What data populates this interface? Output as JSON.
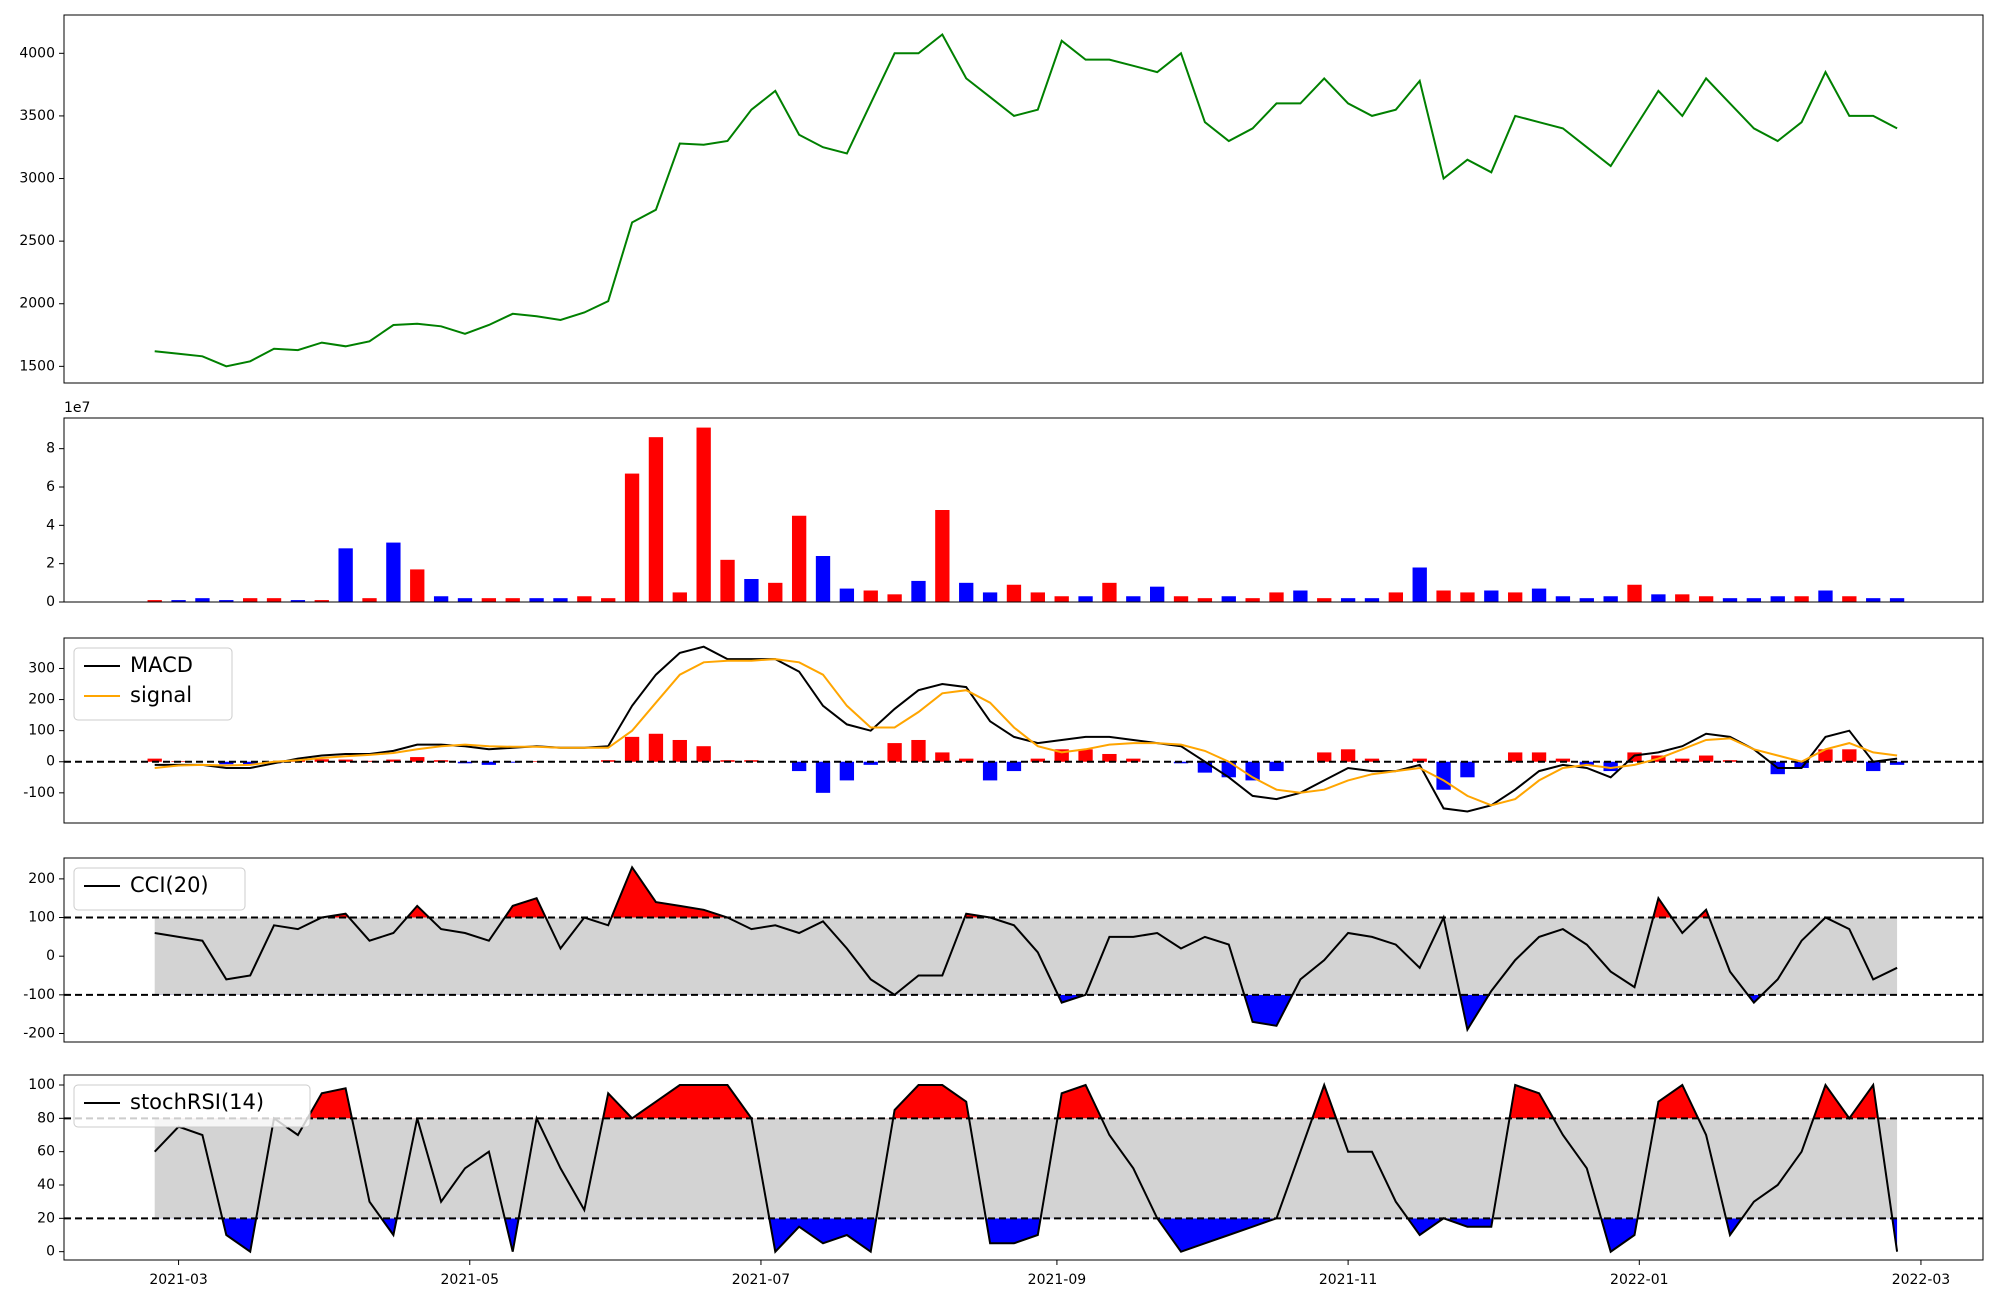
{
  "chart_data": [
    {
      "type": "line",
      "x": [
        0,
        5,
        10,
        15,
        20,
        25,
        30,
        35,
        40,
        45,
        50,
        55,
        60,
        65,
        70,
        75,
        80,
        85,
        90,
        95,
        100,
        105,
        110,
        115,
        120,
        125,
        130,
        135,
        140,
        145,
        150,
        155,
        160,
        165,
        170,
        175,
        180,
        185,
        190,
        195,
        200,
        205,
        210,
        215,
        220,
        225,
        230,
        235,
        240,
        245,
        250,
        255,
        260,
        265,
        270,
        275,
        280,
        285,
        290,
        295,
        300,
        305,
        310,
        315,
        320,
        325,
        330,
        335,
        340,
        345,
        350,
        355,
        360,
        365
      ],
      "xlim": [
        -19,
        383
      ],
      "ylim": [
        1367,
        4306
      ],
      "yticks": [
        1500,
        2000,
        2500,
        3000,
        3500,
        4000
      ],
      "series": [
        {
          "color": "#008000",
          "values": [
            1620,
            1600,
            1580,
            1500,
            1540,
            1640,
            1630,
            1690,
            1660,
            1700,
            1830,
            1840,
            1820,
            1760,
            1830,
            1920,
            1900,
            1870,
            1930,
            2020,
            2650,
            2750,
            3280,
            3270,
            3300,
            3550,
            3700,
            3350,
            3250,
            3200,
            3600,
            4000,
            4000,
            4150,
            3800,
            3650,
            3500,
            3550,
            4100,
            3950,
            3950,
            3900,
            3850,
            4000,
            3450,
            3300,
            3400,
            3600,
            3600,
            3800,
            3600,
            3500,
            3550,
            3780,
            3000,
            3150,
            3050,
            3500,
            3450,
            3400,
            3250,
            3100,
            3400,
            3700,
            3500,
            3800,
            3600,
            3400,
            3300,
            3450,
            3850,
            3500,
            3500,
            3400
          ]
        }
      ]
    },
    {
      "type": "bar",
      "x": [
        0,
        5,
        10,
        15,
        20,
        25,
        30,
        35,
        40,
        45,
        50,
        55,
        60,
        65,
        70,
        75,
        80,
        85,
        90,
        95,
        100,
        105,
        110,
        115,
        120,
        125,
        130,
        135,
        140,
        145,
        150,
        155,
        160,
        165,
        170,
        175,
        180,
        185,
        190,
        195,
        200,
        205,
        210,
        215,
        220,
        225,
        230,
        235,
        240,
        245,
        250,
        255,
        260,
        265,
        270,
        275,
        280,
        285,
        290,
        295,
        300,
        305,
        310,
        315,
        320,
        325,
        330,
        335,
        340,
        345,
        350,
        355,
        360,
        365
      ],
      "xlim": [
        -19,
        383
      ],
      "ylim": [
        0,
        9.6
      ],
      "yticks": [
        0,
        2,
        4,
        6,
        8
      ],
      "offset_label": "1e7",
      "values": [
        0.1,
        0.1,
        0.2,
        0.1,
        0.2,
        0.2,
        0.1,
        0.1,
        2.8,
        0.2,
        3.1,
        1.7,
        0.3,
        0.2,
        0.2,
        0.2,
        0.2,
        0.2,
        0.3,
        0.2,
        6.7,
        8.6,
        0.5,
        9.1,
        2.2,
        1.2,
        1.0,
        4.5,
        2.4,
        0.7,
        0.6,
        0.4,
        1.1,
        4.8,
        1.0,
        0.5,
        0.9,
        0.5,
        0.3,
        0.3,
        1.0,
        0.3,
        0.8,
        0.3,
        0.2,
        0.3,
        0.2,
        0.5,
        0.6,
        0.2,
        0.2,
        0.2,
        0.5,
        1.8,
        0.6,
        0.5,
        0.6,
        0.5,
        0.7,
        0.3,
        0.2,
        0.3,
        0.9,
        0.4,
        0.4,
        0.3,
        0.2,
        0.2,
        0.3,
        0.3,
        0.6,
        0.3,
        0.2,
        0.2
      ],
      "colors": [
        "red",
        "blue",
        "blue",
        "blue",
        "red",
        "red",
        "blue",
        "red",
        "blue",
        "red",
        "blue",
        "red",
        "blue",
        "blue",
        "red",
        "red",
        "blue",
        "blue",
        "red",
        "red",
        "red",
        "red",
        "red",
        "red",
        "red",
        "blue",
        "red",
        "red",
        "blue",
        "blue",
        "red",
        "red",
        "blue",
        "red",
        "blue",
        "blue",
        "red",
        "red",
        "red",
        "blue",
        "red",
        "blue",
        "blue",
        "red",
        "red",
        "blue",
        "red",
        "red",
        "blue",
        "red",
        "blue",
        "blue",
        "red",
        "blue",
        "red",
        "red",
        "blue",
        "red",
        "blue",
        "blue",
        "blue",
        "blue",
        "red",
        "blue",
        "red",
        "red",
        "blue",
        "blue",
        "blue",
        "red",
        "blue",
        "red",
        "blue",
        "blue"
      ]
    },
    {
      "type": "macd",
      "x": [
        0,
        5,
        10,
        15,
        20,
        25,
        30,
        35,
        40,
        45,
        50,
        55,
        60,
        65,
        70,
        75,
        80,
        85,
        90,
        95,
        100,
        105,
        110,
        115,
        120,
        125,
        130,
        135,
        140,
        145,
        150,
        155,
        160,
        165,
        170,
        175,
        180,
        185,
        190,
        195,
        200,
        205,
        210,
        215,
        220,
        225,
        230,
        235,
        240,
        245,
        250,
        255,
        260,
        265,
        270,
        275,
        280,
        285,
        290,
        295,
        300,
        305,
        310,
        315,
        320,
        325,
        330,
        335,
        340,
        345,
        350,
        355,
        360,
        365
      ],
      "xlim": [
        -19,
        383
      ],
      "ylim": [
        -197,
        398
      ],
      "yticks": [
        -100,
        0,
        100,
        200,
        300
      ],
      "zero_line": 0,
      "legend": "upper left",
      "series": [
        {
          "name": "MACD",
          "color": "#000000",
          "values": [
            -10,
            -10,
            -10,
            -20,
            -20,
            -5,
            10,
            20,
            25,
            25,
            35,
            55,
            55,
            50,
            40,
            45,
            50,
            45,
            45,
            50,
            180,
            280,
            350,
            370,
            330,
            330,
            330,
            290,
            180,
            120,
            100,
            170,
            230,
            250,
            240,
            130,
            80,
            60,
            70,
            80,
            80,
            70,
            60,
            50,
            0,
            -50,
            -110,
            -120,
            -100,
            -60,
            -20,
            -30,
            -30,
            -10,
            -150,
            -160,
            -140,
            -90,
            -30,
            -10,
            -20,
            -50,
            20,
            30,
            50,
            90,
            80,
            40,
            -20,
            -20,
            80,
            100,
            0,
            10
          ]
        },
        {
          "name": "signal",
          "color": "#ffa500",
          "values": [
            -20,
            -12,
            -10,
            -12,
            -10,
            0,
            5,
            12,
            18,
            22,
            28,
            40,
            50,
            55,
            50,
            48,
            48,
            45,
            45,
            45,
            100,
            190,
            280,
            320,
            325,
            325,
            330,
            320,
            280,
            180,
            110,
            110,
            160,
            220,
            230,
            190,
            110,
            50,
            30,
            40,
            55,
            60,
            60,
            55,
            35,
            0,
            -50,
            -90,
            -100,
            -90,
            -60,
            -40,
            -30,
            -20,
            -60,
            -110,
            -140,
            -120,
            -60,
            -20,
            -10,
            -20,
            -10,
            10,
            40,
            70,
            75,
            40,
            20,
            0,
            40,
            60,
            30,
            20
          ]
        }
      ],
      "histogram": {
        "pos_color": "red",
        "neg_color": "blue",
        "values": [
          10,
          2,
          0,
          -8,
          -10,
          -5,
          5,
          8,
          7,
          3,
          7,
          15,
          5,
          -5,
          -10,
          -3,
          2,
          0,
          0,
          5,
          80,
          90,
          70,
          50,
          5,
          5,
          0,
          -30,
          -100,
          -60,
          -10,
          60,
          70,
          30,
          10,
          -60,
          -30,
          10,
          40,
          40,
          25,
          10,
          0,
          -5,
          -35,
          -50,
          -60,
          -30,
          0,
          30,
          40,
          10,
          0,
          10,
          -90,
          -50,
          0,
          30,
          30,
          10,
          -10,
          -30,
          30,
          20,
          10,
          20,
          5,
          0,
          -40,
          -20,
          40,
          40,
          -30,
          -10
        ]
      }
    },
    {
      "type": "band",
      "x": [
        0,
        5,
        10,
        15,
        20,
        25,
        30,
        35,
        40,
        45,
        50,
        55,
        60,
        65,
        70,
        75,
        80,
        85,
        90,
        95,
        100,
        105,
        110,
        115,
        120,
        125,
        130,
        135,
        140,
        145,
        150,
        155,
        160,
        165,
        170,
        175,
        180,
        185,
        190,
        195,
        200,
        205,
        210,
        215,
        220,
        225,
        230,
        235,
        240,
        245,
        250,
        255,
        260,
        265,
        270,
        275,
        280,
        285,
        290,
        295,
        300,
        305,
        310,
        315,
        320,
        325,
        330,
        335,
        340,
        345,
        350,
        355,
        360,
        365
      ],
      "xlim": [
        -19,
        383
      ],
      "ylim": [
        -222,
        254
      ],
      "yticks": [
        -200,
        -100,
        0,
        100,
        200
      ],
      "thresholds": [
        100,
        -100
      ],
      "band_color": "#d3d3d3",
      "upper_color": "red",
      "lower_color": "blue",
      "legend": "upper left",
      "series": [
        {
          "name": "CCI(20)",
          "color": "#000000",
          "values": [
            60,
            50,
            40,
            -60,
            -50,
            80,
            70,
            100,
            110,
            40,
            60,
            130,
            70,
            60,
            40,
            130,
            150,
            20,
            100,
            80,
            230,
            140,
            130,
            120,
            100,
            70,
            80,
            60,
            90,
            20,
            -60,
            -100,
            -50,
            -50,
            110,
            100,
            80,
            10,
            -120,
            -100,
            50,
            50,
            60,
            20,
            50,
            30,
            -170,
            -180,
            -60,
            -10,
            60,
            50,
            30,
            -30,
            100,
            -190,
            -90,
            -10,
            50,
            70,
            30,
            -40,
            -80,
            150,
            60,
            120,
            -40,
            -120,
            -60,
            40,
            100,
            70,
            -60,
            -30
          ]
        }
      ]
    },
    {
      "type": "band",
      "x": [
        0,
        5,
        10,
        15,
        20,
        25,
        30,
        35,
        40,
        45,
        50,
        55,
        60,
        65,
        70,
        75,
        80,
        85,
        90,
        95,
        100,
        105,
        110,
        115,
        120,
        125,
        130,
        135,
        140,
        145,
        150,
        155,
        160,
        165,
        170,
        175,
        180,
        185,
        190,
        195,
        200,
        205,
        210,
        215,
        220,
        225,
        230,
        235,
        240,
        245,
        250,
        255,
        260,
        265,
        270,
        275,
        280,
        285,
        290,
        295,
        300,
        305,
        310,
        315,
        320,
        325,
        330,
        335,
        340,
        345,
        350,
        355,
        360,
        365
      ],
      "xlim": [
        -19,
        383
      ],
      "xticks": [
        {
          "value": 5,
          "label": "2021-03"
        },
        {
          "value": 66,
          "label": "2021-05"
        },
        {
          "value": 127,
          "label": "2021-07"
        },
        {
          "value": 189,
          "label": "2021-09"
        },
        {
          "value": 250,
          "label": "2021-11"
        },
        {
          "value": 311,
          "label": "2022-01"
        },
        {
          "value": 370,
          "label": "2022-03"
        }
      ],
      "ylim": [
        -5,
        106
      ],
      "yticks": [
        0,
        20,
        40,
        60,
        80,
        100
      ],
      "thresholds": [
        80,
        20
      ],
      "band_color": "#d3d3d3",
      "upper_color": "red",
      "lower_color": "blue",
      "legend": "upper left",
      "series": [
        {
          "name": "stochRSI(14)",
          "color": "#000000",
          "values": [
            60,
            75,
            70,
            10,
            0,
            80,
            70,
            95,
            98,
            30,
            10,
            80,
            30,
            50,
            60,
            0,
            80,
            50,
            25,
            95,
            80,
            90,
            100,
            100,
            100,
            80,
            0,
            15,
            5,
            10,
            0,
            85,
            100,
            100,
            90,
            5,
            5,
            10,
            95,
            100,
            70,
            50,
            20,
            0,
            5,
            10,
            15,
            20,
            60,
            100,
            60,
            60,
            30,
            10,
            20,
            15,
            15,
            100,
            95,
            70,
            50,
            0,
            10,
            90,
            100,
            70,
            10,
            30,
            40,
            60,
            100,
            80,
            100,
            0
          ]
        }
      ]
    }
  ]
}
